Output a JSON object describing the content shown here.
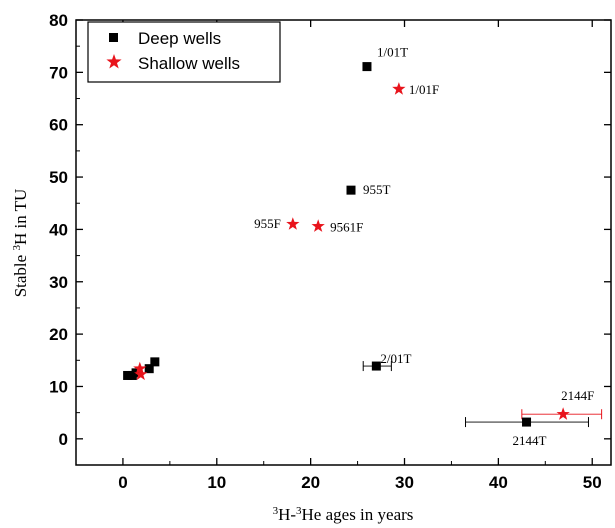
{
  "chart_data": {
    "type": "scatter",
    "title": "",
    "xlabel": {
      "prefix_sup": "3",
      "a": "H-",
      "mid_sup": "3",
      "b": "He ages in years"
    },
    "ylabel": {
      "a": "Stable ",
      "sup": "3",
      "b": "H in TU"
    },
    "xlim": [
      -5,
      52
    ],
    "ylim": [
      -5,
      80
    ],
    "xticks": [
      0,
      10,
      20,
      30,
      40,
      50
    ],
    "yticks": [
      0,
      10,
      20,
      30,
      40,
      50,
      60,
      70,
      80
    ],
    "grid": false,
    "legend_position": "top-left",
    "series": [
      {
        "name": "Deep wells",
        "marker": "square",
        "color": "#000000",
        "points": [
          {
            "x": 0.5,
            "y": 12.1,
            "label": ""
          },
          {
            "x": 1.0,
            "y": 12.1,
            "label": ""
          },
          {
            "x": 1.4,
            "y": 12.6,
            "label": ""
          },
          {
            "x": 2.8,
            "y": 13.4,
            "label": ""
          },
          {
            "x": 3.4,
            "y": 14.7,
            "label": ""
          },
          {
            "x": 26.0,
            "y": 71.1,
            "label": "1/01T"
          },
          {
            "x": 24.3,
            "y": 47.5,
            "label": "955T"
          },
          {
            "x": 27.0,
            "y": 13.9,
            "label": "2/01T",
            "xerr": [
              25.6,
              28.6
            ]
          },
          {
            "x": 43.0,
            "y": 3.2,
            "label": "2144T",
            "xerr": [
              36.5,
              49.6
            ]
          }
        ]
      },
      {
        "name": "Shallow wells",
        "marker": "star",
        "color": "#e8141c",
        "points": [
          {
            "x": 1.8,
            "y": 13.4,
            "label": ""
          },
          {
            "x": 1.9,
            "y": 12.3,
            "label": ""
          },
          {
            "x": 29.4,
            "y": 66.8,
            "label": "1/01F"
          },
          {
            "x": 18.1,
            "y": 41.0,
            "label": "955F"
          },
          {
            "x": 20.8,
            "y": 40.6,
            "label": "9561F"
          },
          {
            "x": 46.9,
            "y": 4.7,
            "label": "2144F",
            "xerr": [
              42.5,
              51.0
            ]
          }
        ]
      }
    ]
  }
}
